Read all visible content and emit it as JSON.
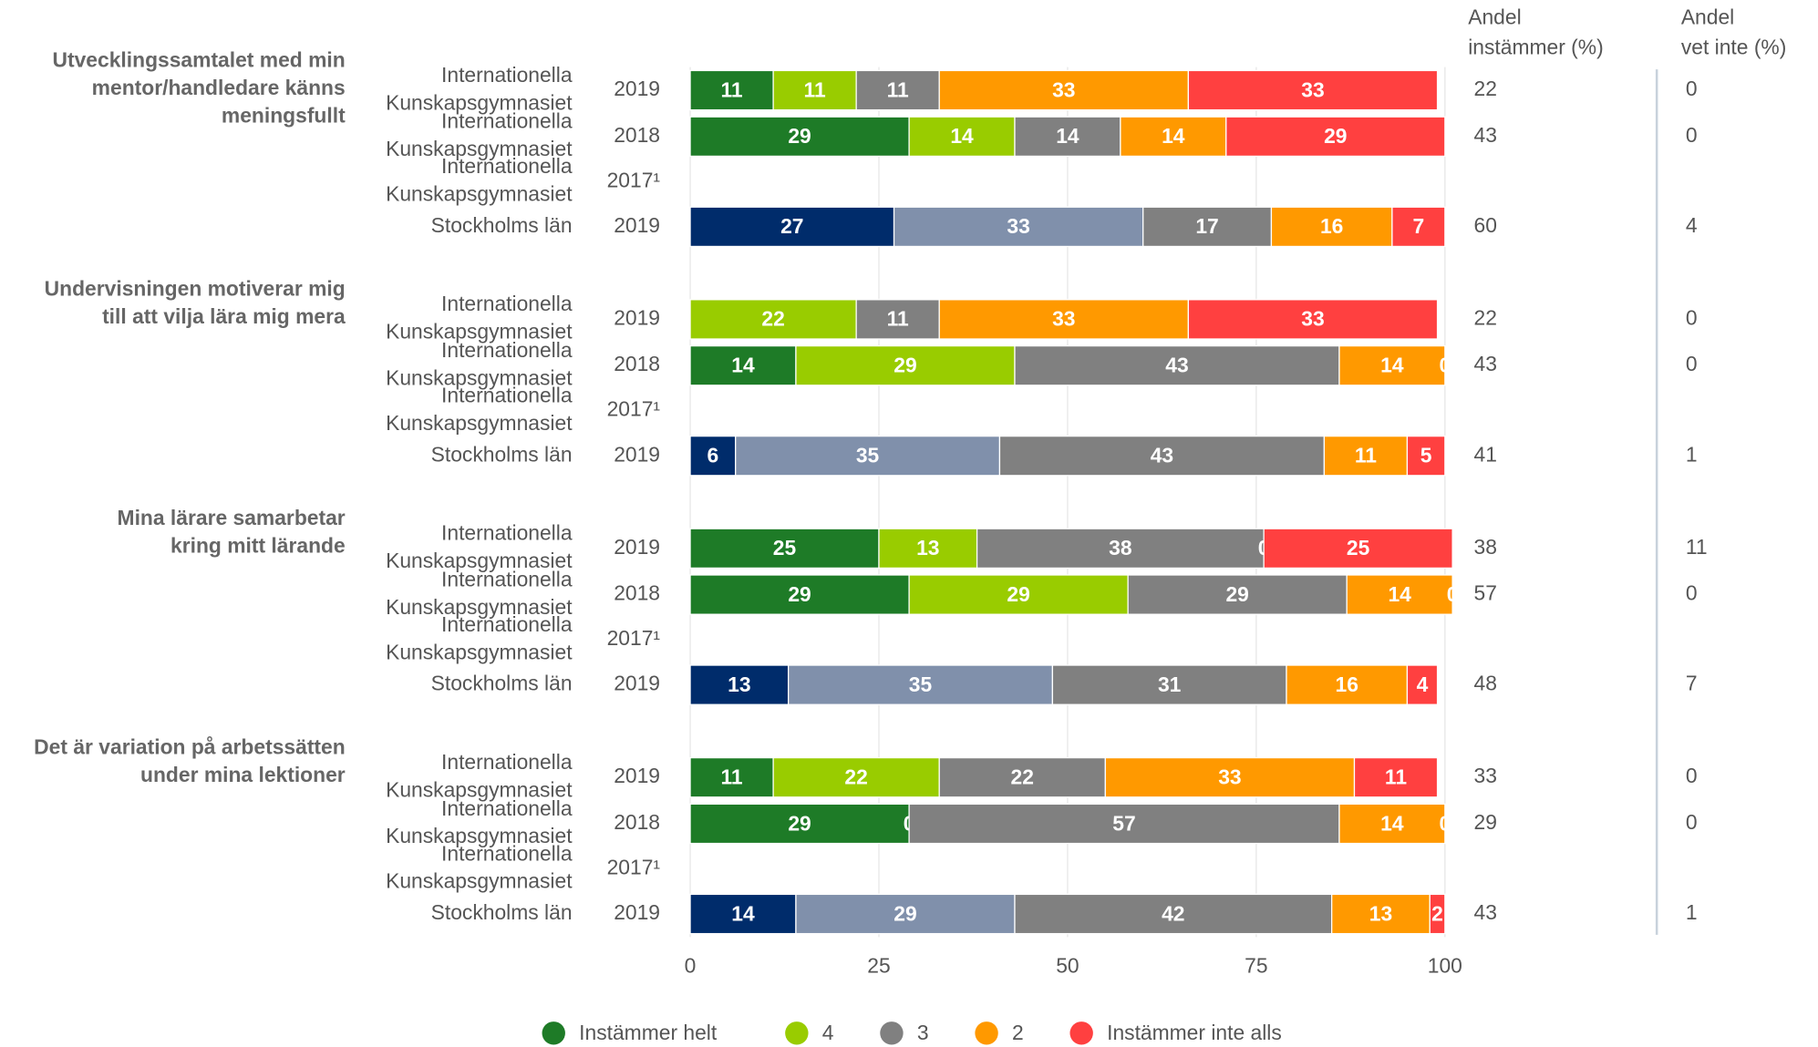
{
  "chart_data": {
    "type": "bar",
    "orientation": "horizontal",
    "stacked": true,
    "xlim": [
      0,
      100
    ],
    "xticks": [
      0,
      25,
      50,
      75,
      100
    ],
    "grid": true,
    "headers": {
      "agree": [
        "Andel",
        "instämmer (%)"
      ],
      "dont_know": [
        "Andel",
        "vet inte (%)"
      ]
    },
    "series": [
      {
        "name": "Instämmer helt",
        "color": "#1e7b27",
        "region_color": "#002c6b"
      },
      {
        "name": "4",
        "color": "#99cc00",
        "region_color": "#8090ab"
      },
      {
        "name": "3",
        "color": "#808080",
        "region_color": "#808080"
      },
      {
        "name": "2",
        "color": "#ff9900",
        "region_color": "#ff9900"
      },
      {
        "name": "Instämmer inte alls",
        "color": "#ff4040",
        "region_color": "#ff4040"
      }
    ],
    "questions": [
      {
        "label": [
          "Utvecklingssamtalet med min",
          "mentor/handledare känns",
          "meningsfullt"
        ],
        "rows": [
          {
            "entity": [
              "Internationella",
              "Kunskapsgymnasiet"
            ],
            "year": "2019",
            "region": false,
            "values": [
              11,
              11,
              11,
              33,
              33
            ],
            "agree": 22,
            "dont_know": 0
          },
          {
            "entity": [
              "Internationella",
              "Kunskapsgymnasiet"
            ],
            "year": "2018",
            "region": false,
            "values": [
              29,
              14,
              14,
              14,
              29
            ],
            "agree": 43,
            "dont_know": 0
          },
          {
            "entity": [
              "Internationella",
              "Kunskapsgymnasiet"
            ],
            "year": "2017¹",
            "region": false,
            "values": null,
            "agree": null,
            "dont_know": null
          },
          {
            "entity": [
              "Stockholms län"
            ],
            "year": "2019",
            "region": true,
            "values": [
              27,
              33,
              17,
              16,
              7
            ],
            "agree": 60,
            "dont_know": 4
          }
        ]
      },
      {
        "label": [
          "Undervisningen motiverar mig",
          "till att vilja lära mig mera"
        ],
        "rows": [
          {
            "entity": [
              "Internationella",
              "Kunskapsgymnasiet"
            ],
            "year": "2019",
            "region": false,
            "values": [
              0,
              22,
              11,
              33,
              33
            ],
            "agree": 22,
            "dont_know": 0
          },
          {
            "entity": [
              "Internationella",
              "Kunskapsgymnasiet"
            ],
            "year": "2018",
            "region": false,
            "values": [
              14,
              29,
              43,
              14,
              0
            ],
            "agree": 43,
            "dont_know": 0
          },
          {
            "entity": [
              "Internationella",
              "Kunskapsgymnasiet"
            ],
            "year": "2017¹",
            "region": false,
            "values": null,
            "agree": null,
            "dont_know": null
          },
          {
            "entity": [
              "Stockholms län"
            ],
            "year": "2019",
            "region": true,
            "values": [
              6,
              35,
              43,
              11,
              5
            ],
            "agree": 41,
            "dont_know": 1
          }
        ]
      },
      {
        "label": [
          "Mina lärare samarbetar",
          "kring mitt lärande"
        ],
        "rows": [
          {
            "entity": [
              "Internationella",
              "Kunskapsgymnasiet"
            ],
            "year": "2019",
            "region": false,
            "values": [
              25,
              13,
              38,
              0,
              25
            ],
            "agree": 38,
            "dont_know": 11
          },
          {
            "entity": [
              "Internationella",
              "Kunskapsgymnasiet"
            ],
            "year": "2018",
            "region": false,
            "values": [
              29,
              29,
              29,
              14,
              0
            ],
            "agree": 57,
            "dont_know": 0
          },
          {
            "entity": [
              "Internationella",
              "Kunskapsgymnasiet"
            ],
            "year": "2017¹",
            "region": false,
            "values": null,
            "agree": null,
            "dont_know": null
          },
          {
            "entity": [
              "Stockholms län"
            ],
            "year": "2019",
            "region": true,
            "values": [
              13,
              35,
              31,
              16,
              4
            ],
            "agree": 48,
            "dont_know": 7
          }
        ]
      },
      {
        "label": [
          "Det är variation på arbetssätten",
          "under mina lektioner"
        ],
        "rows": [
          {
            "entity": [
              "Internationella",
              "Kunskapsgymnasiet"
            ],
            "year": "2019",
            "region": false,
            "values": [
              11,
              22,
              22,
              33,
              11
            ],
            "agree": 33,
            "dont_know": 0
          },
          {
            "entity": [
              "Internationella",
              "Kunskapsgymnasiet"
            ],
            "year": "2018",
            "region": false,
            "values": [
              29,
              0,
              57,
              14,
              0
            ],
            "agree": 29,
            "dont_know": 0
          },
          {
            "entity": [
              "Internationella",
              "Kunskapsgymnasiet"
            ],
            "year": "2017¹",
            "region": false,
            "values": null,
            "agree": null,
            "dont_know": null
          },
          {
            "entity": [
              "Stockholms län"
            ],
            "year": "2019",
            "region": true,
            "values": [
              14,
              29,
              42,
              13,
              2
            ],
            "agree": 43,
            "dont_know": 1
          }
        ]
      }
    ]
  }
}
